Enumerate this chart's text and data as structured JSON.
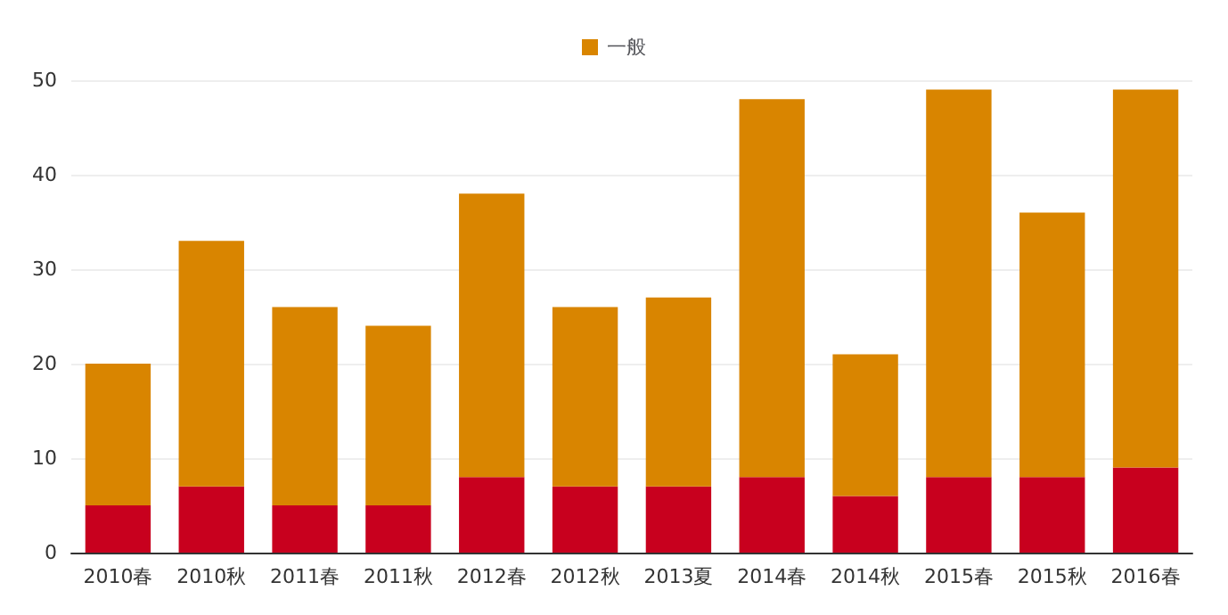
{
  "chart_data": {
    "type": "bar",
    "stacked": true,
    "categories": [
      "2010春",
      "2010秋",
      "2011春",
      "2011秋",
      "2012春",
      "2012秋",
      "2013夏",
      "2014春",
      "2014秋",
      "2015春",
      "2015秋",
      "2016春"
    ],
    "series": [
      {
        "color": "#c8001e",
        "values": [
          5,
          7,
          5,
          5,
          8,
          7,
          7,
          8,
          6,
          8,
          8,
          9
        ]
      },
      {
        "name": "一般",
        "color": "#d98500",
        "values": [
          15,
          26,
          21,
          19,
          30,
          19,
          20,
          40,
          15,
          41,
          28,
          40
        ]
      }
    ],
    "ylim": [
      0,
      50
    ],
    "yticks": [
      0,
      10,
      20,
      30,
      40,
      50
    ],
    "grid": "y",
    "legend": "top"
  }
}
